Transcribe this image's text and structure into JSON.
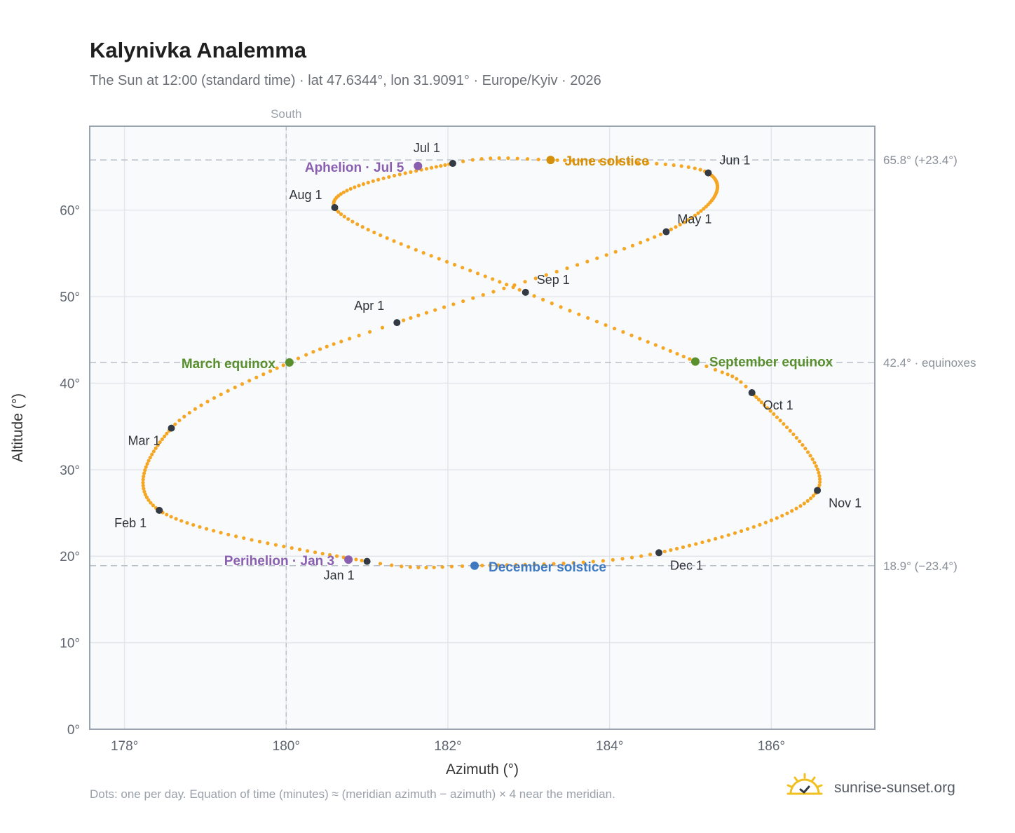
{
  "title": "Kalynivka Analemma",
  "subtitle": "The Sun at 12:00 (standard time) · lat 47.6344°, lon 31.9091° · Europe/Kyiv · 2026",
  "footnote": "Dots: one per day. Equation of time (minutes) ≈ (meridian azimuth − azimuth) × 4 near the meridian.",
  "brand": "sunrise-sunset.org",
  "colors": {
    "path": "#f5a623",
    "month_marker": "#333a44",
    "equinox": "#5a8f2e",
    "june_solstice": "#d4900b",
    "december_solstice": "#3f7ac0",
    "apsis": "#8a5fb0",
    "grid": "#e3e7ec",
    "reference_line": "#b8c0c8",
    "plot_bg": "#f8fafc",
    "frame": "#9aa4b1"
  },
  "chart_data": {
    "type": "scatter",
    "xlabel": "Azimuth (°)",
    "ylabel": "Altitude (°)",
    "xlim": [
      177.57,
      187.28
    ],
    "ylim": [
      0,
      69.7
    ],
    "x_ticks": [
      178,
      180,
      182,
      184,
      186
    ],
    "x_tick_labels": [
      "178°",
      "180°",
      "182°",
      "184°",
      "186°"
    ],
    "y_ticks": [
      0,
      10,
      20,
      30,
      40,
      50,
      60
    ],
    "y_tick_labels": [
      "0°",
      "10°",
      "20°",
      "30°",
      "40°",
      "50°",
      "60°"
    ],
    "grid": true,
    "south_line": {
      "x": 180,
      "label": "South"
    },
    "reference_lines": [
      {
        "y": 65.8,
        "label": "65.8° (+23.4°)"
      },
      {
        "y": 42.4,
        "label": "42.4° · equinoxes"
      },
      {
        "y": 18.9,
        "label": "18.9° (−23.4°)"
      }
    ],
    "daily_path": [
      {
        "date": "Jan 1",
        "x": 181.0,
        "y": 19.4
      },
      {
        "date": "Feb 1",
        "x": 178.43,
        "y": 25.3
      },
      {
        "date": "Mar 1",
        "x": 178.58,
        "y": 34.8
      },
      {
        "date": "Mar 20",
        "x": 180.04,
        "y": 42.4
      },
      {
        "date": "Apr 1",
        "x": 181.37,
        "y": 47.0
      },
      {
        "date": "May 1",
        "x": 184.7,
        "y": 57.5
      },
      {
        "date": "Jun 1",
        "x": 185.22,
        "y": 64.3
      },
      {
        "date": "Jun 21",
        "x": 183.27,
        "y": 65.8
      },
      {
        "date": "Jul 1",
        "x": 182.06,
        "y": 65.4
      },
      {
        "date": "Aug 1",
        "x": 180.6,
        "y": 60.3
      },
      {
        "date": "Sep 1",
        "x": 182.96,
        "y": 50.5
      },
      {
        "date": "Sep 22",
        "x": 185.06,
        "y": 42.5
      },
      {
        "date": "Oct 1",
        "x": 185.76,
        "y": 38.9
      },
      {
        "date": "Nov 1",
        "x": 186.57,
        "y": 27.6
      },
      {
        "date": "Dec 1",
        "x": 184.61,
        "y": 20.4
      },
      {
        "date": "Dec 21",
        "x": 182.33,
        "y": 18.9
      }
    ],
    "month_markers": [
      {
        "label": "Jan 1",
        "x": 181.0,
        "y": 19.4
      },
      {
        "label": "Feb 1",
        "x": 178.43,
        "y": 25.3
      },
      {
        "label": "Mar 1",
        "x": 178.58,
        "y": 34.8
      },
      {
        "label": "Apr 1",
        "x": 181.37,
        "y": 47.0
      },
      {
        "label": "May 1",
        "x": 184.7,
        "y": 57.5
      },
      {
        "label": "Jun 1",
        "x": 185.22,
        "y": 64.3
      },
      {
        "label": "Jul 1",
        "x": 182.06,
        "y": 65.4
      },
      {
        "label": "Aug 1",
        "x": 180.6,
        "y": 60.3
      },
      {
        "label": "Sep 1",
        "x": 182.96,
        "y": 50.5
      },
      {
        "label": "Oct 1",
        "x": 185.76,
        "y": 38.9
      },
      {
        "label": "Nov 1",
        "x": 186.57,
        "y": 27.6
      },
      {
        "label": "Dec 1",
        "x": 184.61,
        "y": 20.4
      }
    ],
    "events": [
      {
        "label": "March equinox",
        "x": 180.04,
        "y": 42.4,
        "kind": "equinox"
      },
      {
        "label": "September equinox",
        "x": 185.06,
        "y": 42.5,
        "kind": "equinox"
      },
      {
        "label": "June solstice",
        "x": 183.27,
        "y": 65.8,
        "kind": "june_solstice"
      },
      {
        "label": "December solstice",
        "x": 182.33,
        "y": 18.9,
        "kind": "december_solstice"
      },
      {
        "label": "Aphelion · Jul 5",
        "x": 181.63,
        "y": 65.1,
        "kind": "apsis"
      },
      {
        "label": "Perihelion · Jan 3",
        "x": 180.77,
        "y": 19.6,
        "kind": "apsis"
      }
    ]
  }
}
